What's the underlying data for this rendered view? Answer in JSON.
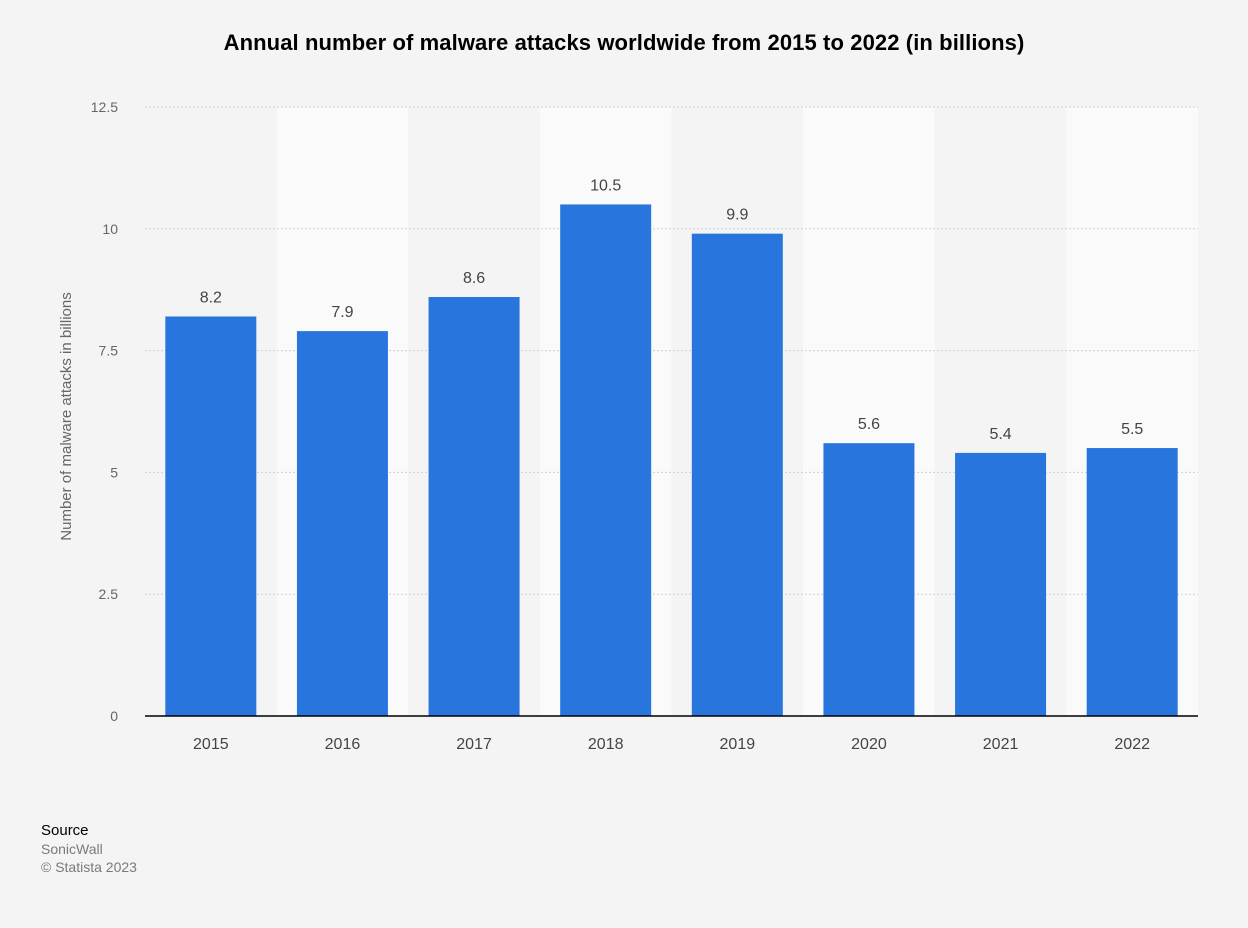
{
  "colors": {
    "bar": "#2876dd",
    "band": "#fafafa",
    "grid": "#cfcfcf",
    "axis": "#000000",
    "tick_text": "#666666",
    "value_text": "#444444"
  },
  "chart_data": {
    "type": "bar",
    "title": "Annual number of malware attacks worldwide from 2015 to 2022 (in billions)",
    "xlabel": "",
    "ylabel": "Number of malware attacks in billions",
    "categories": [
      "2015",
      "2016",
      "2017",
      "2018",
      "2019",
      "2020",
      "2021",
      "2022"
    ],
    "values": [
      8.2,
      7.9,
      8.6,
      10.5,
      9.9,
      5.6,
      5.4,
      5.5
    ],
    "value_labels": [
      "8.2",
      "7.9",
      "8.6",
      "10.5",
      "9.9",
      "5.6",
      "5.4",
      "5.5"
    ],
    "ylim": [
      0,
      12.5
    ],
    "yticks": [
      0,
      2.5,
      5,
      7.5,
      10,
      12.5
    ],
    "ytick_labels": [
      "0",
      "2.5",
      "5",
      "7.5",
      "10",
      "12.5"
    ],
    "grid": true,
    "legend": "none"
  },
  "footer": {
    "source_label": "Source",
    "source_name": "SonicWall",
    "copyright": "© Statista 2023"
  }
}
